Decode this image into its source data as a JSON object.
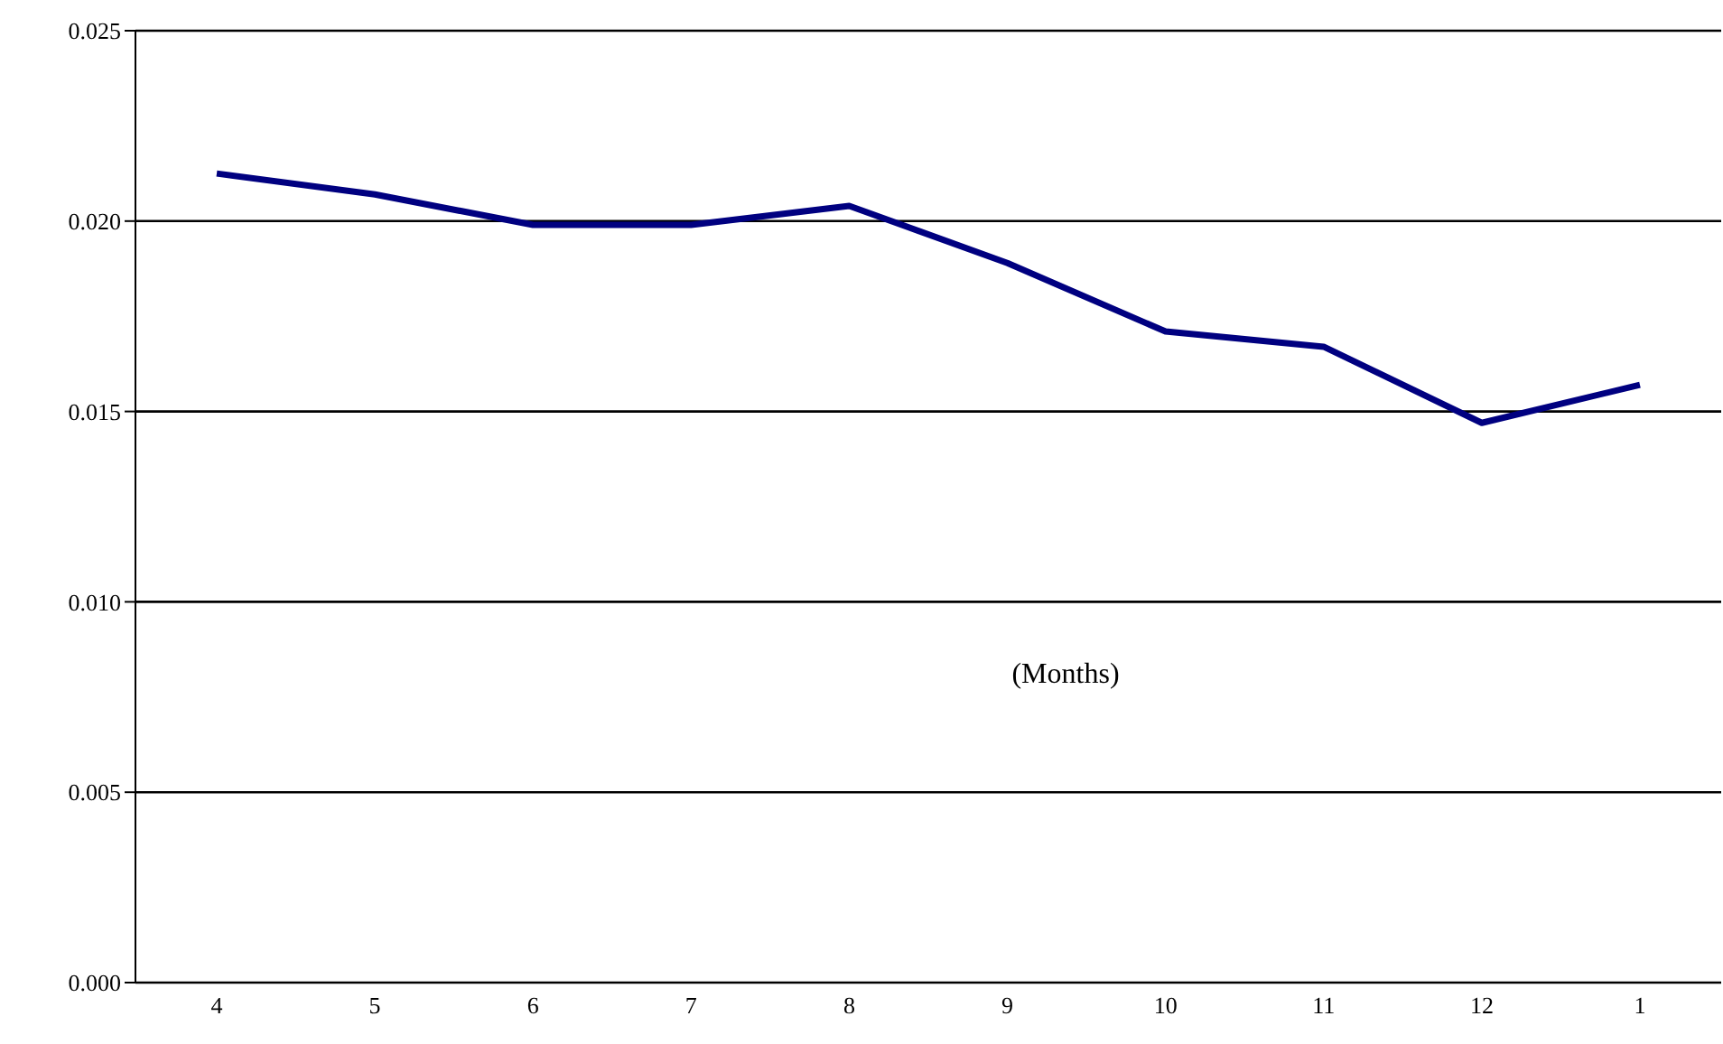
{
  "chart_data": {
    "type": "line",
    "xlabel": "(Months)",
    "categories": [
      "4",
      "5",
      "6",
      "7",
      "8",
      "9",
      "10",
      "11",
      "12",
      "1"
    ],
    "series": [
      {
        "color": "#000080",
        "values": [
          0.02125,
          0.0207,
          0.0199,
          0.0199,
          0.0204,
          0.0189,
          0.0171,
          0.0167,
          0.0147,
          0.0157
        ]
      }
    ],
    "ylim": [
      0,
      0.025
    ],
    "yticks": [
      {
        "value": 0,
        "label": "0.000"
      },
      {
        "value": 0.005,
        "label": "0.005"
      },
      {
        "value": 0.01,
        "label": "0.010"
      },
      {
        "value": 0.015,
        "label": "0.015"
      },
      {
        "value": 0.02,
        "label": "0.020"
      },
      {
        "value": 0.025,
        "label": "0.025"
      }
    ],
    "grid": "y",
    "legend": false,
    "marker": "none",
    "line_style": "solid"
  }
}
